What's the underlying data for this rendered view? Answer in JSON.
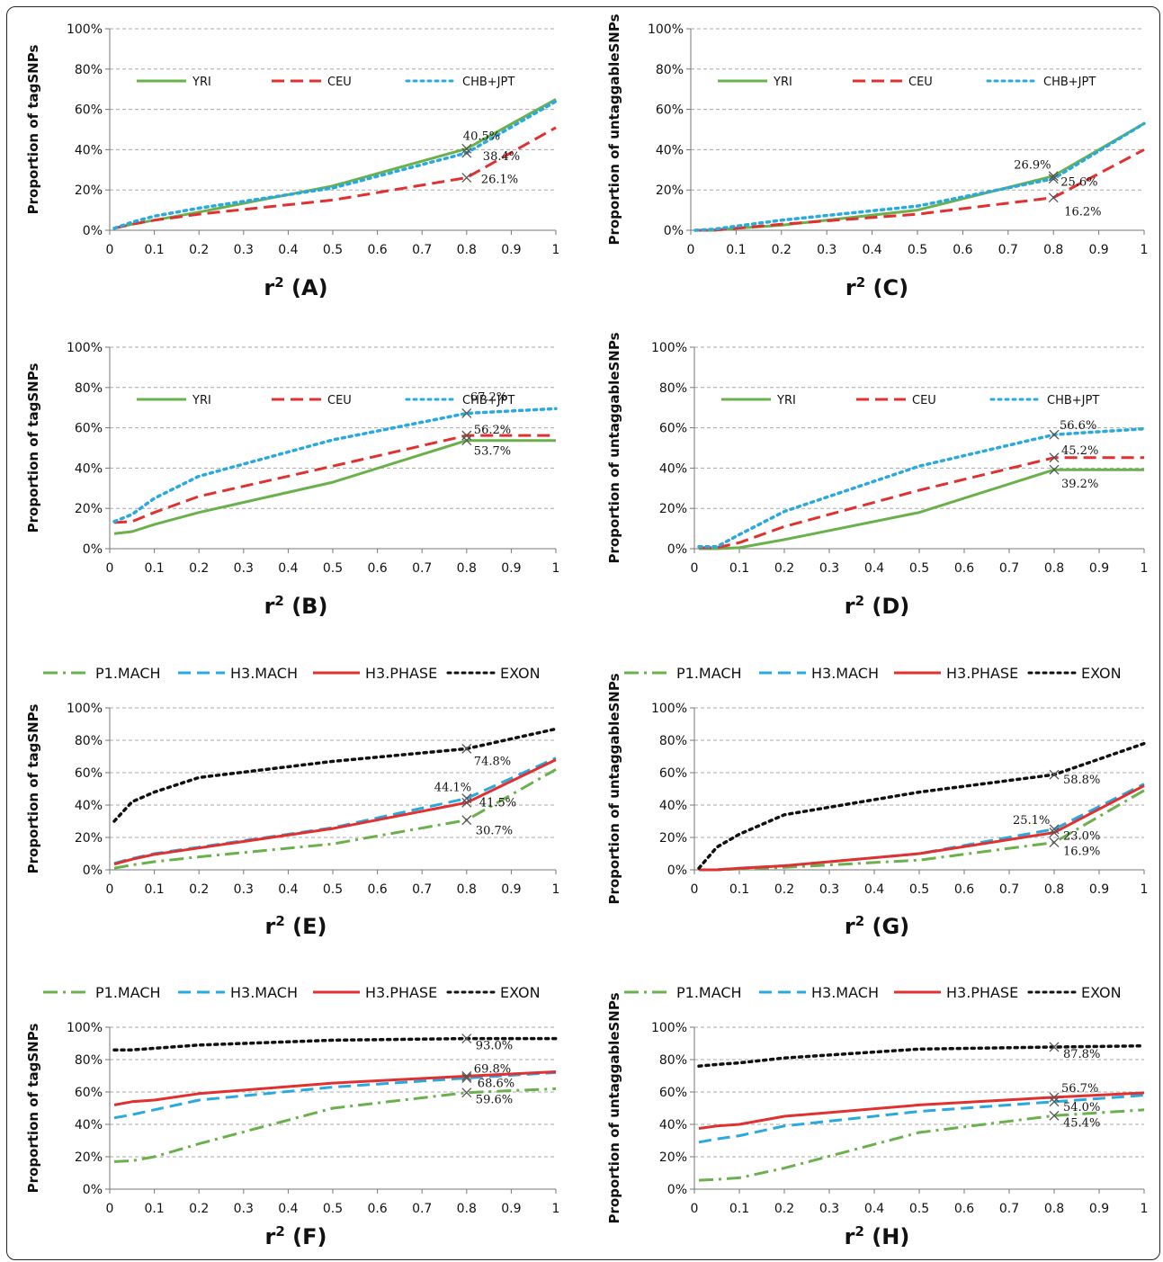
{
  "colors": {
    "YRI": "#6ab04c",
    "CEU": "#e03030",
    "CHB+JPT": "#2aa8e0",
    "P1.MACH": "#6ab04c",
    "H3.MACH": "#2aa8e0",
    "H3.PHASE": "#e03030",
    "EXON": "#111111"
  },
  "shared_legend_top": {
    "items": [
      "P1.MACH",
      "H3.MACH",
      "H3.PHASE",
      "EXON"
    ]
  },
  "shared_legend_bottom": {
    "items": [
      "P1.MACH",
      "H3.MACH",
      "H3.PHASE",
      "EXON"
    ]
  },
  "chart_data": [
    {
      "id": "A",
      "type": "line",
      "title_letter": "(A)",
      "title_base": "r",
      "title_sup": "2",
      "ylabel": "Proportion of tagSNPs",
      "x_ticks": [
        "0",
        "0.1",
        "0.2",
        "0.3",
        "0.4",
        "0.5",
        "0.6",
        "0.7",
        "0.8",
        "0.9",
        "1"
      ],
      "y_ticks": [
        "0%",
        "20%",
        "40%",
        "60%",
        "80%",
        "100%"
      ],
      "ylim": [
        0,
        100
      ],
      "xlim": [
        0,
        1
      ],
      "legend": "inside-top",
      "x": [
        0.01,
        0.05,
        0.1,
        0.2,
        0.5,
        0.8,
        1
      ],
      "series": [
        {
          "name": "YRI",
          "style": "solid",
          "values": [
            1,
            3,
            5,
            9,
            22,
            40.5,
            65
          ]
        },
        {
          "name": "CEU",
          "style": "dash",
          "values": [
            1,
            3,
            5,
            8,
            15,
            26.1,
            51
          ]
        },
        {
          "name": "CHB+JPT",
          "style": "dot",
          "values": [
            1,
            4,
            7,
            11,
            21,
            38.4,
            64
          ]
        }
      ],
      "annotations": [
        {
          "text": "40.5%",
          "series": 0,
          "dx": -4,
          "dy": -10
        },
        {
          "text": "38.4%",
          "series": 2,
          "dx": 18,
          "dy": 8
        },
        {
          "text": "26.1%",
          "series": 1,
          "dx": 16,
          "dy": 6
        }
      ]
    },
    {
      "id": "C",
      "type": "line",
      "title_letter": "(C)",
      "title_base": "r",
      "title_sup": "2",
      "ylabel": "Proportion of untaggableSNPs",
      "x_ticks": [
        "0",
        "0.1",
        "0.2",
        "0.3",
        "0.4",
        "0.5",
        "0.6",
        "0.7",
        "0.8",
        "0.9",
        "1"
      ],
      "y_ticks": [
        "0%",
        "20%",
        "40%",
        "60%",
        "80%",
        "100%"
      ],
      "ylim": [
        0,
        100
      ],
      "xlim": [
        0,
        1
      ],
      "legend": "inside-top",
      "x": [
        0.01,
        0.05,
        0.1,
        0.2,
        0.5,
        0.8,
        1
      ],
      "series": [
        {
          "name": "YRI",
          "style": "solid",
          "values": [
            0,
            0,
            1,
            2.5,
            10,
            26.9,
            53
          ]
        },
        {
          "name": "CEU",
          "style": "dash",
          "values": [
            0,
            0,
            1,
            3,
            8,
            16.2,
            40
          ]
        },
        {
          "name": "CHB+JPT",
          "style": "dot",
          "values": [
            0,
            0.5,
            2,
            5,
            12,
            25.6,
            53
          ]
        }
      ],
      "annotations": [
        {
          "text": "26.9%",
          "series": 0,
          "dx": -44,
          "dy": -8
        },
        {
          "text": "25.6%",
          "series": 2,
          "dx": 8,
          "dy": 8
        },
        {
          "text": "16.2%",
          "series": 1,
          "dx": 12,
          "dy": 20
        }
      ]
    },
    {
      "id": "B",
      "type": "line",
      "title_letter": "(B)",
      "title_base": "r",
      "title_sup": "2",
      "ylabel": "Proportion of tagSNPs",
      "x_ticks": [
        "0",
        "0.1",
        "0.2",
        "0.3",
        "0.4",
        "0.5",
        "0.6",
        "0.7",
        "0.8",
        "0.9",
        "1"
      ],
      "y_ticks": [
        "0%",
        "20%",
        "40%",
        "60%",
        "80%",
        "100%"
      ],
      "ylim": [
        0,
        100
      ],
      "xlim": [
        0,
        1
      ],
      "legend": "inside-top",
      "x": [
        0.01,
        0.05,
        0.1,
        0.2,
        0.5,
        0.8,
        1
      ],
      "series": [
        {
          "name": "YRI",
          "style": "solid",
          "values": [
            7.5,
            8.5,
            12,
            18,
            33,
            53.7,
            53.7
          ]
        },
        {
          "name": "CEU",
          "style": "dash",
          "values": [
            13,
            13.5,
            18,
            26,
            41,
            56.2,
            56.2
          ]
        },
        {
          "name": "CHB+JPT",
          "style": "dot",
          "values": [
            13.5,
            17,
            25,
            36,
            54,
            67.2,
            69.5
          ]
        }
      ],
      "annotations": [
        {
          "text": "67.2%",
          "series": 2,
          "dx": 4,
          "dy": -14
        },
        {
          "text": "56.2%",
          "series": 1,
          "dx": 8,
          "dy": -2
        },
        {
          "text": "53.7%",
          "series": 0,
          "dx": 8,
          "dy": 16
        }
      ]
    },
    {
      "id": "D",
      "type": "line",
      "title_letter": "(D)",
      "title_base": "r",
      "title_sup": "2",
      "ylabel": "Proportion of untaggableSNPs",
      "x_ticks": [
        "0",
        "0.1",
        "0.2",
        "0.3",
        "0.4",
        "0.5",
        "0.6",
        "0.7",
        "0.8",
        "0.9",
        "1"
      ],
      "y_ticks": [
        "0%",
        "20%",
        "40%",
        "60%",
        "80%",
        "100%"
      ],
      "ylim": [
        0,
        100
      ],
      "xlim": [
        0,
        1
      ],
      "legend": "inside-top",
      "x": [
        0.01,
        0.05,
        0.1,
        0.2,
        0.5,
        0.8,
        1
      ],
      "series": [
        {
          "name": "YRI",
          "style": "solid",
          "values": [
            0,
            0,
            0.5,
            4.5,
            18,
            39.2,
            39.2
          ]
        },
        {
          "name": "CEU",
          "style": "dash",
          "values": [
            0.5,
            0.5,
            3,
            11,
            29,
            45.2,
            45.2
          ]
        },
        {
          "name": "CHB+JPT",
          "style": "dot",
          "values": [
            1,
            1,
            7,
            18.5,
            41,
            56.6,
            59.5
          ]
        }
      ],
      "annotations": [
        {
          "text": "56.6%",
          "series": 2,
          "dx": 6,
          "dy": -6
        },
        {
          "text": "45.2%",
          "series": 1,
          "dx": 8,
          "dy": -4
        },
        {
          "text": "39.2%",
          "series": 0,
          "dx": 8,
          "dy": 20
        }
      ]
    },
    {
      "id": "E",
      "type": "line",
      "title_letter": "(E)",
      "title_base": "r",
      "title_sup": "2",
      "ylabel": "Proportion of tagSNPs",
      "x_ticks": [
        "0",
        "0.1",
        "0.2",
        "0.3",
        "0.4",
        "0.5",
        "0.6",
        "0.7",
        "0.8",
        "0.9",
        "1"
      ],
      "y_ticks": [
        "0%",
        "20%",
        "40%",
        "60%",
        "80%",
        "100%"
      ],
      "ylim": [
        0,
        100
      ],
      "xlim": [
        0,
        1
      ],
      "legend": "external",
      "x": [
        0.01,
        0.05,
        0.1,
        0.2,
        0.5,
        0.8,
        1
      ],
      "series": [
        {
          "name": "P1.MACH",
          "style": "dashdot",
          "values": [
            1,
            3,
            5,
            8,
            16,
            30.7,
            62
          ]
        },
        {
          "name": "H3.MACH",
          "style": "dash",
          "values": [
            4,
            7,
            10,
            14,
            26,
            44.1,
            69
          ]
        },
        {
          "name": "H3.PHASE",
          "style": "solid",
          "values": [
            3.5,
            6.5,
            9.5,
            13.5,
            25.5,
            41.5,
            68
          ]
        },
        {
          "name": "EXON",
          "style": "dot",
          "values": [
            30,
            42,
            48,
            57,
            67,
            74.8,
            87
          ]
        }
      ],
      "annotations": [
        {
          "text": "74.8%",
          "series": 3,
          "dx": 8,
          "dy": 18
        },
        {
          "text": "44.1%",
          "series": 1,
          "dx": -36,
          "dy": -8
        },
        {
          "text": "41.5%",
          "series": 2,
          "dx": 14,
          "dy": 4
        },
        {
          "text": "30.7%",
          "series": 0,
          "dx": 10,
          "dy": 16
        }
      ]
    },
    {
      "id": "G",
      "type": "line",
      "title_letter": "(G)",
      "title_base": "r",
      "title_sup": "2",
      "ylabel": "Proportion of untaggableSNPs",
      "x_ticks": [
        "0",
        "0.1",
        "0.2",
        "0.3",
        "0.4",
        "0.5",
        "0.6",
        "0.7",
        "0.8",
        "0.9",
        "1"
      ],
      "y_ticks": [
        "0%",
        "20%",
        "40%",
        "60%",
        "80%",
        "100%"
      ],
      "ylim": [
        0,
        100
      ],
      "xlim": [
        0,
        1
      ],
      "legend": "external",
      "x": [
        0.01,
        0.05,
        0.1,
        0.2,
        0.5,
        0.8,
        1
      ],
      "series": [
        {
          "name": "P1.MACH",
          "style": "dashdot",
          "values": [
            0,
            0,
            0.5,
            1.5,
            6,
            16.9,
            49
          ]
        },
        {
          "name": "H3.MACH",
          "style": "dash",
          "values": [
            0,
            0,
            1,
            2.5,
            10,
            25.1,
            53
          ]
        },
        {
          "name": "H3.PHASE",
          "style": "solid",
          "values": [
            0,
            0,
            1,
            2.5,
            10,
            23.0,
            52
          ]
        },
        {
          "name": "EXON",
          "style": "dot",
          "values": [
            1,
            14,
            22,
            34,
            48,
            58.8,
            78
          ]
        }
      ],
      "annotations": [
        {
          "text": "58.8%",
          "series": 3,
          "dx": 10,
          "dy": 10
        },
        {
          "text": "25.1%",
          "series": 1,
          "dx": -46,
          "dy": -6
        },
        {
          "text": "23.0%",
          "series": 2,
          "dx": 10,
          "dy": 8
        },
        {
          "text": "16.9%",
          "series": 0,
          "dx": 10,
          "dy": 14
        }
      ]
    },
    {
      "id": "F",
      "type": "line",
      "title_letter": "(F)",
      "title_base": "r",
      "title_sup": "2",
      "ylabel": "Proportion of tagSNPs",
      "x_ticks": [
        "0",
        "0.1",
        "0.2",
        "0.3",
        "0.4",
        "0.5",
        "0.6",
        "0.7",
        "0.8",
        "0.9",
        "1"
      ],
      "y_ticks": [
        "0%",
        "20%",
        "40%",
        "60%",
        "80%",
        "100%"
      ],
      "ylim": [
        0,
        100
      ],
      "xlim": [
        0,
        1
      ],
      "legend": "external",
      "x": [
        0.01,
        0.05,
        0.1,
        0.2,
        0.5,
        0.8,
        1
      ],
      "series": [
        {
          "name": "P1.MACH",
          "style": "dashdot",
          "values": [
            17,
            17.5,
            20,
            28,
            50,
            59.6,
            62
          ]
        },
        {
          "name": "H3.MACH",
          "style": "dash",
          "values": [
            44,
            46,
            49,
            55,
            63,
            68.6,
            72
          ]
        },
        {
          "name": "H3.PHASE",
          "style": "solid",
          "values": [
            52,
            54,
            55,
            59,
            65.5,
            69.8,
            72.5
          ]
        },
        {
          "name": "EXON",
          "style": "dot",
          "values": [
            86,
            86,
            87,
            89,
            92,
            93.0,
            93
          ]
        }
      ],
      "annotations": [
        {
          "text": "93.0%",
          "series": 3,
          "dx": 10,
          "dy": 12
        },
        {
          "text": "69.8%",
          "series": 2,
          "dx": 8,
          "dy": -4
        },
        {
          "text": "68.6%",
          "series": 1,
          "dx": 12,
          "dy": 10
        },
        {
          "text": "59.6%",
          "series": 0,
          "dx": 10,
          "dy": 12
        }
      ]
    },
    {
      "id": "H",
      "type": "line",
      "title_letter": "(H)",
      "title_base": "r",
      "title_sup": "2",
      "ylabel": "Proportion of untaggableSNPs",
      "x_ticks": [
        "0",
        "0.1",
        "0.2",
        "0.3",
        "0.4",
        "0.5",
        "0.6",
        "0.7",
        "0.8",
        "0.9",
        "1"
      ],
      "y_ticks": [
        "0%",
        "20%",
        "40%",
        "60%",
        "80%",
        "100%"
      ],
      "ylim": [
        0,
        100
      ],
      "xlim": [
        0,
        1
      ],
      "legend": "external",
      "x": [
        0.01,
        0.05,
        0.1,
        0.2,
        0.5,
        0.8,
        1
      ],
      "series": [
        {
          "name": "P1.MACH",
          "style": "dashdot",
          "values": [
            5.5,
            6,
            7,
            13,
            35,
            45.4,
            49
          ]
        },
        {
          "name": "H3.MACH",
          "style": "dash",
          "values": [
            29,
            31,
            33,
            39,
            48,
            54.0,
            58
          ]
        },
        {
          "name": "H3.PHASE",
          "style": "solid",
          "values": [
            37.5,
            39,
            40,
            45,
            52,
            56.7,
            59.5
          ]
        },
        {
          "name": "EXON",
          "style": "dot",
          "values": [
            76,
            77,
            78,
            81,
            86.5,
            87.8,
            88.5
          ]
        }
      ],
      "annotations": [
        {
          "text": "87.8%",
          "series": 3,
          "dx": 10,
          "dy": 12
        },
        {
          "text": "56.7%",
          "series": 2,
          "dx": 8,
          "dy": -6
        },
        {
          "text": "54.0%",
          "series": 1,
          "dx": 10,
          "dy": 10
        },
        {
          "text": "45.4%",
          "series": 0,
          "dx": 10,
          "dy": 12
        }
      ]
    }
  ]
}
